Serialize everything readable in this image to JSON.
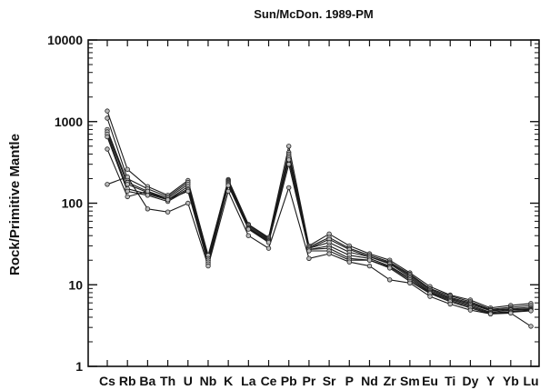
{
  "chart_data": {
    "type": "line",
    "title": "Sun/McDon. 1989-PM",
    "xlabel": "",
    "ylabel": "Rock/Primitive Mantle",
    "y_scale": "log",
    "ylim": [
      1,
      10000
    ],
    "y_ticks": [
      "1",
      "10",
      "100",
      "1000",
      "10000"
    ],
    "grid": false,
    "legend": "none",
    "line_color": "#1a1a1a",
    "marker_fill": "#bbbbbb",
    "categories": [
      "Cs",
      "Rb",
      "Ba",
      "Th",
      "U",
      "Nb",
      "K",
      "La",
      "Ce",
      "Pb",
      "Pr",
      "Sr",
      "P",
      "Nd",
      "Zr",
      "Sm",
      "Eu",
      "Ti",
      "Dy",
      "Y",
      "Yb",
      "Lu"
    ],
    "series": [
      {
        "values": [
          1350,
          260,
          160,
          125,
          190,
          22,
          195,
          55,
          38,
          500,
          30,
          42,
          30,
          24,
          20,
          14,
          9.5,
          7.5,
          6.5,
          5.2,
          5.6,
          5.9
        ]
      },
      {
        "values": [
          1100,
          200,
          150,
          120,
          180,
          23,
          190,
          54,
          37,
          420,
          29,
          38,
          28,
          23,
          19,
          13.5,
          9,
          7.3,
          6.2,
          5.0,
          5.3,
          5.6
        ]
      },
      {
        "values": [
          800,
          180,
          140,
          115,
          170,
          21,
          185,
          52,
          36,
          400,
          28,
          36,
          27,
          22,
          18.5,
          13,
          8.8,
          7.0,
          6.0,
          4.9,
          5.1,
          5.3
        ]
      },
      {
        "values": [
          750,
          170,
          135,
          110,
          160,
          20,
          180,
          50,
          35,
          380,
          28,
          33,
          25,
          22,
          18,
          12.5,
          8.5,
          6.8,
          5.8,
          4.8,
          5.0,
          5.1
        ]
      },
      {
        "values": [
          700,
          150,
          130,
          110,
          150,
          20,
          175,
          50,
          34,
          360,
          27,
          30,
          23,
          21,
          17,
          12,
          8.2,
          6.6,
          5.6,
          4.6,
          4.9,
          5.0
        ]
      },
      {
        "values": [
          650,
          140,
          125,
          105,
          145,
          19,
          170,
          49,
          34,
          340,
          27,
          28,
          21,
          20,
          16.5,
          11.5,
          8.0,
          6.4,
          5.4,
          4.5,
          4.7,
          4.9
        ]
      },
      {
        "values": [
          460,
          120,
          140,
          110,
          140,
          18,
          165,
          48,
          33,
          300,
          26,
          26,
          20,
          20,
          16,
          11,
          7.8,
          6.2,
          5.2,
          4.4,
          4.6,
          4.8
        ]
      },
      {
        "values": [
          170,
          210,
          85,
          78,
          100,
          17,
          140,
          40,
          28,
          155,
          21,
          24,
          19,
          17,
          11.5,
          10.5,
          7.2,
          5.8,
          4.9,
          4.4,
          4.5,
          3.1
        ]
      }
    ]
  }
}
